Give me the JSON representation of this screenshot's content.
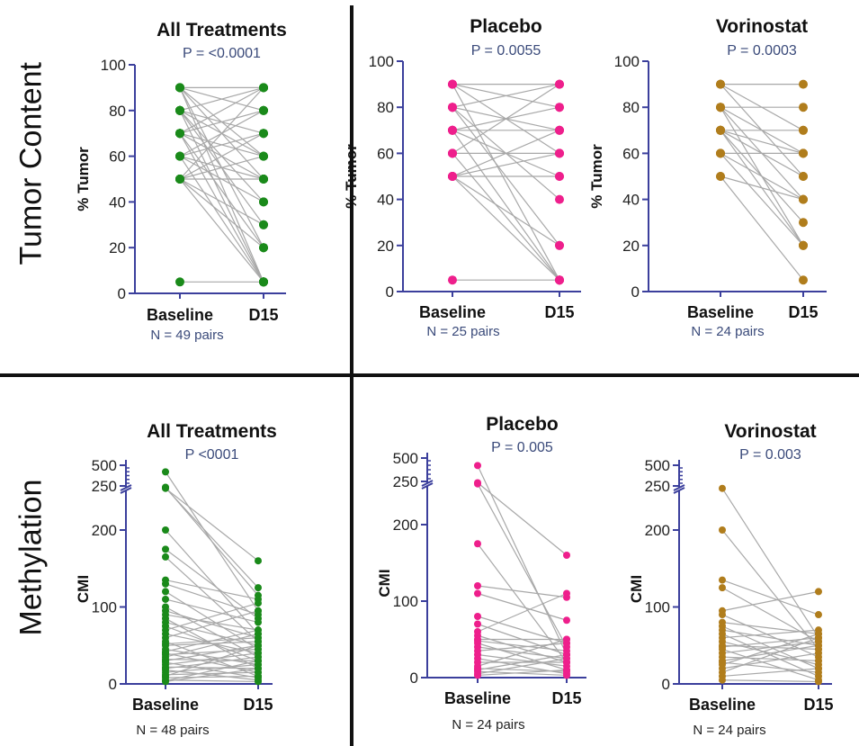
{
  "row_titles": [
    "Tumor Content",
    "Methylation"
  ],
  "colors": {
    "green": "#1a8a1a",
    "pink": "#ee1f8c",
    "gold": "#b07d1c",
    "axis": "#3b3f9c",
    "line": "#a8a8a8",
    "pvalue": "#3a4a7a"
  },
  "chart_data": [
    {
      "type": "paired-dot",
      "title": "All Treatments",
      "subtitle": "P = <0.0001",
      "ylabel": "% Tumor",
      "categories": [
        "Baseline",
        "D15"
      ],
      "footnote": "N = 49 pairs",
      "ylim": [
        0,
        100
      ],
      "yticks": [
        0,
        20,
        40,
        60,
        80,
        100
      ],
      "color": "green",
      "pairs": [
        [
          90,
          90
        ],
        [
          90,
          80
        ],
        [
          90,
          60
        ],
        [
          90,
          50
        ],
        [
          90,
          20
        ],
        [
          90,
          5
        ],
        [
          80,
          90
        ],
        [
          80,
          70
        ],
        [
          80,
          60
        ],
        [
          80,
          40
        ],
        [
          80,
          30
        ],
        [
          80,
          5
        ],
        [
          70,
          90
        ],
        [
          70,
          80
        ],
        [
          70,
          60
        ],
        [
          70,
          50
        ],
        [
          70,
          20
        ],
        [
          70,
          5
        ],
        [
          60,
          80
        ],
        [
          60,
          70
        ],
        [
          60,
          50
        ],
        [
          60,
          40
        ],
        [
          60,
          5
        ],
        [
          50,
          90
        ],
        [
          50,
          70
        ],
        [
          50,
          60
        ],
        [
          50,
          50
        ],
        [
          50,
          30
        ],
        [
          50,
          20
        ],
        [
          50,
          5
        ],
        [
          5,
          5
        ]
      ]
    },
    {
      "type": "paired-dot",
      "title": "Placebo",
      "subtitle": "P = 0.0055",
      "ylabel": "% Tumor",
      "categories": [
        "Baseline",
        "D15"
      ],
      "footnote": "N = 25 pairs",
      "ylim": [
        0,
        100
      ],
      "yticks": [
        0,
        20,
        40,
        60,
        80,
        100
      ],
      "color": "pink",
      "pairs": [
        [
          90,
          90
        ],
        [
          90,
          80
        ],
        [
          90,
          60
        ],
        [
          90,
          5
        ],
        [
          80,
          90
        ],
        [
          80,
          70
        ],
        [
          80,
          40
        ],
        [
          80,
          20
        ],
        [
          70,
          80
        ],
        [
          70,
          70
        ],
        [
          70,
          50
        ],
        [
          70,
          5
        ],
        [
          60,
          90
        ],
        [
          60,
          60
        ],
        [
          60,
          5
        ],
        [
          50,
          70
        ],
        [
          50,
          60
        ],
        [
          50,
          50
        ],
        [
          50,
          20
        ],
        [
          50,
          5
        ],
        [
          5,
          5
        ]
      ]
    },
    {
      "type": "paired-dot",
      "title": "Vorinostat",
      "subtitle": "P = 0.0003",
      "ylabel": "% Tumor",
      "categories": [
        "Baseline",
        "D15"
      ],
      "footnote": "N = 24 pairs",
      "ylim": [
        0,
        100
      ],
      "yticks": [
        0,
        20,
        40,
        60,
        80,
        100
      ],
      "color": "gold",
      "pairs": [
        [
          90,
          90
        ],
        [
          90,
          70
        ],
        [
          90,
          50
        ],
        [
          80,
          80
        ],
        [
          80,
          60
        ],
        [
          80,
          40
        ],
        [
          80,
          20
        ],
        [
          70,
          70
        ],
        [
          70,
          60
        ],
        [
          70,
          50
        ],
        [
          70,
          30
        ],
        [
          70,
          20
        ],
        [
          60,
          60
        ],
        [
          60,
          40
        ],
        [
          60,
          20
        ],
        [
          50,
          40
        ],
        [
          50,
          5
        ]
      ]
    },
    {
      "type": "paired-dot",
      "title": "All Treatments",
      "subtitle": "P <0001",
      "ylabel": "CMI",
      "categories": [
        "Baseline",
        "D15"
      ],
      "footnote": "N = 48 pairs",
      "ylim": [
        0,
        500
      ],
      "yticks": [
        0,
        100,
        200
      ],
      "ybreak_ticks": [
        250,
        500
      ],
      "color": "green",
      "pairs": [
        [
          420,
          95
        ],
        [
          225,
          115
        ],
        [
          215,
          125
        ],
        [
          205,
          160
        ],
        [
          200,
          65
        ],
        [
          175,
          85
        ],
        [
          165,
          55
        ],
        [
          135,
          110
        ],
        [
          130,
          90
        ],
        [
          120,
          45
        ],
        [
          110,
          80
        ],
        [
          100,
          35
        ],
        [
          95,
          60
        ],
        [
          90,
          70
        ],
        [
          85,
          20
        ],
        [
          80,
          50
        ],
        [
          75,
          30
        ],
        [
          70,
          105
        ],
        [
          65,
          40
        ],
        [
          60,
          95
        ],
        [
          55,
          10
        ],
        [
          52,
          60
        ],
        [
          50,
          55
        ],
        [
          45,
          25
        ],
        [
          42,
          70
        ],
        [
          40,
          15
        ],
        [
          38,
          45
        ],
        [
          35,
          65
        ],
        [
          32,
          30
        ],
        [
          30,
          50
        ],
        [
          28,
          8
        ],
        [
          25,
          40
        ],
        [
          22,
          20
        ],
        [
          20,
          35
        ],
        [
          18,
          5
        ],
        [
          15,
          25
        ],
        [
          12,
          15
        ],
        [
          10,
          50
        ],
        [
          8,
          10
        ],
        [
          5,
          3
        ],
        [
          4,
          30
        ],
        [
          3,
          20
        ]
      ]
    },
    {
      "type": "paired-dot",
      "title": "Placebo",
      "subtitle": "P = 0.005",
      "ylabel": "CMI",
      "categories": [
        "Baseline",
        "D15"
      ],
      "footnote": "N = 24 pairs",
      "ylim": [
        0,
        500
      ],
      "yticks": [
        0,
        100,
        200
      ],
      "ybreak_ticks": [
        250,
        500
      ],
      "color": "pink",
      "pairs": [
        [
          420,
          30
        ],
        [
          225,
          160
        ],
        [
          205,
          40
        ],
        [
          175,
          20
        ],
        [
          120,
          105
        ],
        [
          110,
          75
        ],
        [
          80,
          45
        ],
        [
          70,
          30
        ],
        [
          60,
          110
        ],
        [
          55,
          20
        ],
        [
          50,
          50
        ],
        [
          48,
          35
        ],
        [
          45,
          10
        ],
        [
          40,
          25
        ],
        [
          35,
          45
        ],
        [
          30,
          15
        ],
        [
          25,
          5
        ],
        [
          20,
          20
        ],
        [
          15,
          50
        ],
        [
          12,
          8
        ],
        [
          10,
          30
        ],
        [
          8,
          3
        ],
        [
          5,
          25
        ],
        [
          3,
          10
        ]
      ]
    },
    {
      "type": "paired-dot",
      "title": "Vorinostat",
      "subtitle": "P = 0.003",
      "ylabel": "CMI",
      "categories": [
        "Baseline",
        "D15"
      ],
      "footnote": "N = 24 pairs",
      "ylim": [
        0,
        500
      ],
      "yticks": [
        0,
        100,
        200
      ],
      "ybreak_ticks": [
        250,
        500
      ],
      "color": "gold",
      "pairs": [
        [
          205,
          60
        ],
        [
          200,
          45
        ],
        [
          135,
          90
        ],
        [
          125,
          55
        ],
        [
          95,
          120
        ],
        [
          90,
          35
        ],
        [
          80,
          65
        ],
        [
          75,
          20
        ],
        [
          70,
          50
        ],
        [
          65,
          10
        ],
        [
          60,
          70
        ],
        [
          55,
          25
        ],
        [
          50,
          45
        ],
        [
          48,
          60
        ],
        [
          45,
          5
        ],
        [
          40,
          55
        ],
        [
          35,
          30
        ],
        [
          30,
          50
        ],
        [
          28,
          15
        ],
        [
          25,
          65
        ],
        [
          20,
          40
        ],
        [
          15,
          60
        ],
        [
          10,
          20
        ],
        [
          5,
          3
        ]
      ]
    }
  ]
}
